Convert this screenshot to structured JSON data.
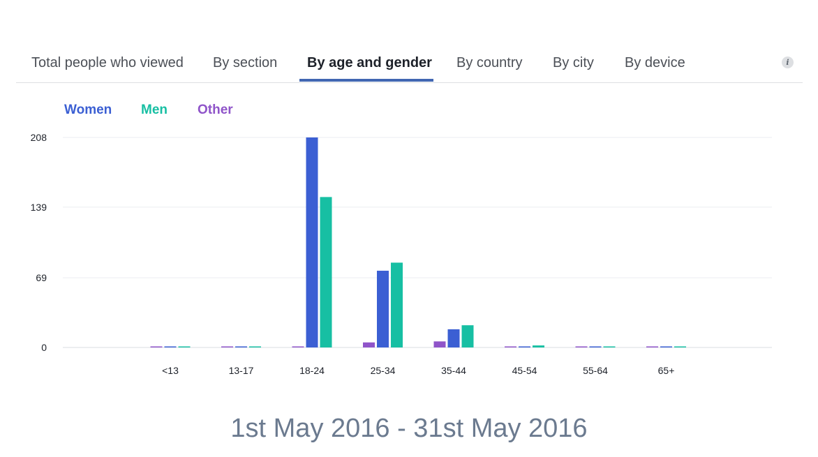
{
  "tabs": [
    {
      "label": "Total people who viewed",
      "active": false
    },
    {
      "label": "By section",
      "active": false
    },
    {
      "label": "By age and gender",
      "active": true
    },
    {
      "label": "By country",
      "active": false
    },
    {
      "label": "By city",
      "active": false
    },
    {
      "label": "By device",
      "active": false
    }
  ],
  "info_icon": {
    "glyph": "i",
    "icon": "info-icon"
  },
  "legend": [
    {
      "label": "Women",
      "color": "#3b5fd3"
    },
    {
      "label": "Men",
      "color": "#17bfa3"
    },
    {
      "label": "Other",
      "color": "#8f54c9"
    }
  ],
  "chart_data": {
    "type": "bar",
    "categories": [
      "<13",
      "13-17",
      "18-24",
      "25-34",
      "35-44",
      "45-54",
      "55-64",
      "65+"
    ],
    "series": [
      {
        "name": "Other",
        "color": "#8f54c9",
        "values": [
          0,
          0,
          0,
          5,
          6,
          0,
          0,
          0
        ]
      },
      {
        "name": "Women",
        "color": "#3b5fd3",
        "values": [
          0,
          0,
          208,
          76,
          18,
          0,
          0,
          1
        ]
      },
      {
        "name": "Men",
        "color": "#17bfa3",
        "values": [
          0,
          0,
          149,
          84,
          22,
          2,
          0,
          0
        ]
      }
    ],
    "yticks": [
      "0",
      "69",
      "139",
      "208"
    ],
    "ylim": [
      0,
      208
    ],
    "grid": true,
    "legend_position": "top-left"
  },
  "date_range": "1st May 2016 - 31st May 2016"
}
